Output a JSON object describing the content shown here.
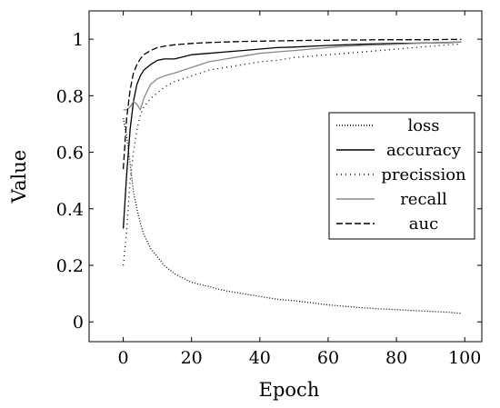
{
  "chart_data": {
    "type": "line",
    "xlabel": "Epoch",
    "ylabel": "Value",
    "xlim": [
      -10,
      105
    ],
    "ylim": [
      -0.07,
      1.1
    ],
    "xticks": [
      0,
      20,
      40,
      60,
      80,
      100
    ],
    "yticks": [
      0,
      0.2,
      0.4,
      0.6,
      0.8,
      1
    ],
    "ytick_labels": [
      "0",
      "0.2",
      "0.4",
      "0.6",
      "0.8",
      "1"
    ],
    "grid": false,
    "legend_position": "center-right",
    "series": [
      {
        "name": "loss",
        "style": "densely-dotted",
        "color": "#000000",
        "x": [
          0,
          1,
          2,
          3,
          4,
          5,
          6,
          8,
          10,
          12,
          15,
          20,
          25,
          30,
          35,
          40,
          45,
          50,
          55,
          60,
          65,
          70,
          75,
          80,
          85,
          90,
          95,
          99
        ],
        "y": [
          0.72,
          0.66,
          0.56,
          0.46,
          0.4,
          0.35,
          0.31,
          0.26,
          0.23,
          0.2,
          0.17,
          0.14,
          0.125,
          0.11,
          0.1,
          0.09,
          0.08,
          0.075,
          0.068,
          0.06,
          0.055,
          0.05,
          0.046,
          0.043,
          0.04,
          0.037,
          0.034,
          0.03
        ]
      },
      {
        "name": "accuracy",
        "style": "solid",
        "color": "#000000",
        "x": [
          0,
          1,
          2,
          3,
          4,
          5,
          6,
          8,
          10,
          12,
          15,
          20,
          25,
          30,
          35,
          40,
          45,
          50,
          55,
          60,
          65,
          70,
          75,
          80,
          85,
          90,
          95,
          99
        ],
        "y": [
          0.33,
          0.52,
          0.68,
          0.78,
          0.84,
          0.87,
          0.89,
          0.91,
          0.925,
          0.93,
          0.93,
          0.945,
          0.95,
          0.955,
          0.96,
          0.965,
          0.97,
          0.972,
          0.975,
          0.978,
          0.98,
          0.982,
          0.984,
          0.985,
          0.986,
          0.987,
          0.988,
          0.99
        ]
      },
      {
        "name": "precission",
        "style": "dotted",
        "color": "#000000",
        "x": [
          0,
          1,
          2,
          3,
          4,
          5,
          6,
          8,
          10,
          12,
          15,
          20,
          25,
          30,
          35,
          40,
          45,
          50,
          55,
          60,
          65,
          70,
          75,
          80,
          85,
          90,
          95,
          99
        ],
        "y": [
          0.2,
          0.32,
          0.5,
          0.6,
          0.68,
          0.73,
          0.76,
          0.79,
          0.81,
          0.83,
          0.85,
          0.87,
          0.89,
          0.9,
          0.91,
          0.92,
          0.925,
          0.935,
          0.94,
          0.945,
          0.95,
          0.955,
          0.96,
          0.965,
          0.97,
          0.975,
          0.98,
          0.983
        ]
      },
      {
        "name": "recall",
        "style": "solid",
        "color": "#888888",
        "x": [
          0,
          1,
          2,
          3,
          4,
          5,
          6,
          8,
          10,
          12,
          15,
          20,
          25,
          30,
          35,
          40,
          45,
          50,
          55,
          60,
          65,
          70,
          75,
          80,
          85,
          90,
          95,
          99
        ],
        "y": [
          0.75,
          0.75,
          0.76,
          0.78,
          0.77,
          0.75,
          0.79,
          0.84,
          0.86,
          0.87,
          0.88,
          0.9,
          0.92,
          0.93,
          0.94,
          0.95,
          0.955,
          0.96,
          0.965,
          0.97,
          0.975,
          0.978,
          0.98,
          0.982,
          0.985,
          0.987,
          0.989,
          0.99
        ]
      },
      {
        "name": "auc",
        "style": "dashed",
        "color": "#000000",
        "x": [
          0,
          1,
          2,
          3,
          4,
          5,
          6,
          8,
          10,
          12,
          15,
          20,
          25,
          30,
          35,
          40,
          45,
          50,
          55,
          60,
          65,
          70,
          75,
          80,
          85,
          90,
          95,
          99
        ],
        "y": [
          0.54,
          0.72,
          0.82,
          0.88,
          0.91,
          0.93,
          0.945,
          0.96,
          0.97,
          0.975,
          0.98,
          0.985,
          0.988,
          0.99,
          0.992,
          0.993,
          0.994,
          0.995,
          0.996,
          0.996,
          0.997,
          0.997,
          0.998,
          0.998,
          0.998,
          0.998,
          0.999,
          0.999
        ]
      }
    ]
  }
}
